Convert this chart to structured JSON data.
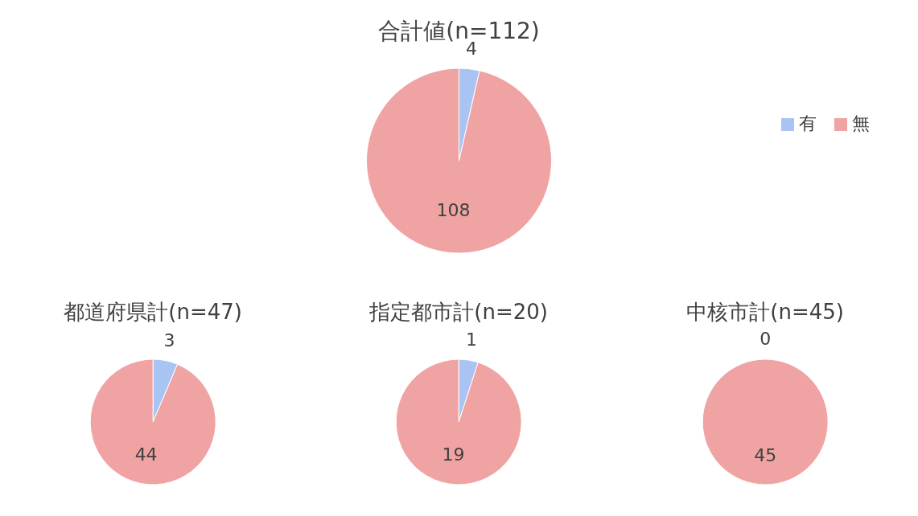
{
  "chart_data": [
    {
      "type": "pie",
      "title": "合計値(n=112)",
      "categories": [
        "有",
        "無"
      ],
      "values": [
        4,
        108
      ],
      "colors": [
        "#a9c4f2",
        "#f0a3a3"
      ],
      "data_labels": true,
      "legend": "right"
    },
    {
      "type": "pie",
      "title": "都道府県計(n=47)",
      "categories": [
        null,
        null
      ],
      "values": [
        3,
        44
      ],
      "colors": [
        "#a9c4f2",
        "#f0a3a3"
      ],
      "data_labels": true
    },
    {
      "type": "pie",
      "title": "指定都市計(n=20)",
      "categories": [
        null,
        null
      ],
      "values": [
        1,
        19
      ],
      "colors": [
        "#a9c4f2",
        "#f0a3a3"
      ],
      "data_labels": true
    },
    {
      "type": "pie",
      "title": "中核市計(n=45)",
      "categories": [
        null,
        null
      ],
      "values": [
        0,
        45
      ],
      "colors": [
        "#a9c4f2",
        "#f0a3a3"
      ],
      "value_labels": [
        "0",
        "45"
      ]
    }
  ]
}
